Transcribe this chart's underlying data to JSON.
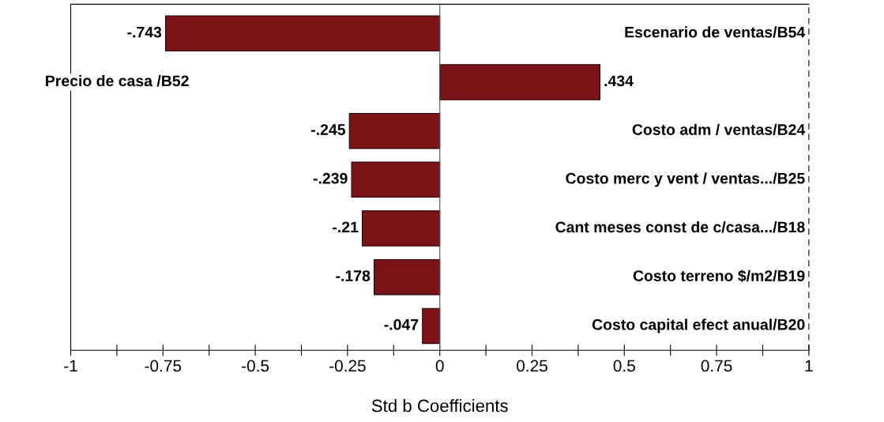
{
  "chart_data": {
    "type": "bar",
    "orientation": "horizontal",
    "xlabel": "Std b Coefficients",
    "categories": [
      "Escenario de ventas/B54",
      "Precio de casa /B52",
      "Costo adm / ventas/B24",
      "Costo merc y vent / ventas.../B25",
      "Cant meses const de c/casa.../B18",
      "Costo terreno $/m2/B19",
      "Costo capital efect anual/B20"
    ],
    "values": [
      -0.743,
      0.434,
      -0.245,
      -0.239,
      -0.21,
      -0.178,
      -0.047
    ],
    "value_labels": [
      "-.743",
      ".434",
      "-.245",
      "-.239",
      "-.21",
      "-.178",
      "-.047"
    ],
    "color": "#7a1418",
    "xlim": [
      -1,
      1
    ],
    "xticks": [
      -1,
      {
        "value": -0.875,
        "label": null
      },
      -0.75,
      {
        "value": -0.625,
        "label": null
      },
      -0.5,
      {
        "value": -0.375,
        "label": null
      },
      -0.25,
      {
        "value": -0.125,
        "label": null
      },
      0,
      {
        "value": 0.125,
        "label": null
      },
      0.25,
      {
        "value": 0.375,
        "label": null
      },
      0.5,
      {
        "value": 0.625,
        "label": null
      },
      0.75,
      {
        "value": 0.875,
        "label": null
      },
      1
    ],
    "ref_lines": [
      {
        "axis": "x",
        "value": 0,
        "color": "#555555"
      }
    ],
    "grid": false,
    "legend": false
  }
}
